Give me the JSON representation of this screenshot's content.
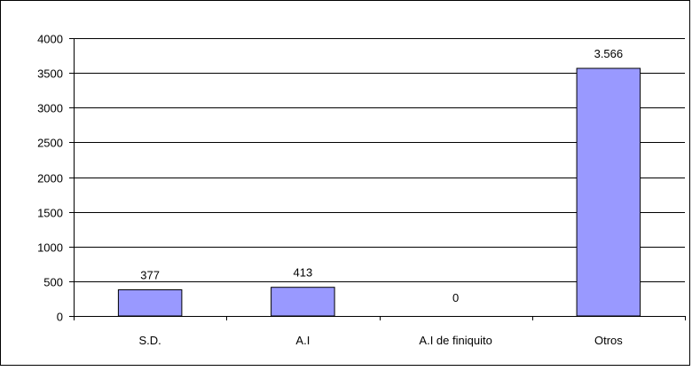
{
  "chart_data": {
    "type": "bar",
    "categories": [
      "S.D.",
      "A.I",
      "A.I de finiquito",
      "Otros"
    ],
    "values": [
      377,
      413,
      0,
      3566
    ],
    "data_labels": [
      "377",
      "413",
      "0",
      "3.566"
    ],
    "ylim": [
      0,
      4000
    ],
    "yticks": [
      0,
      500,
      1000,
      1500,
      2000,
      2500,
      3000,
      3500,
      4000
    ],
    "ytick_labels": [
      "0",
      "500",
      "1000",
      "1500",
      "2000",
      "2500",
      "3000",
      "3500",
      "4000"
    ],
    "title": "",
    "xlabel": "",
    "ylabel": "",
    "grid": true,
    "legend": "none",
    "colors": {
      "bar_fill": "#9999ff",
      "bar_stroke": "#000000",
      "gridline": "#000000",
      "background": "#ffffff",
      "frame": "#000000"
    }
  }
}
